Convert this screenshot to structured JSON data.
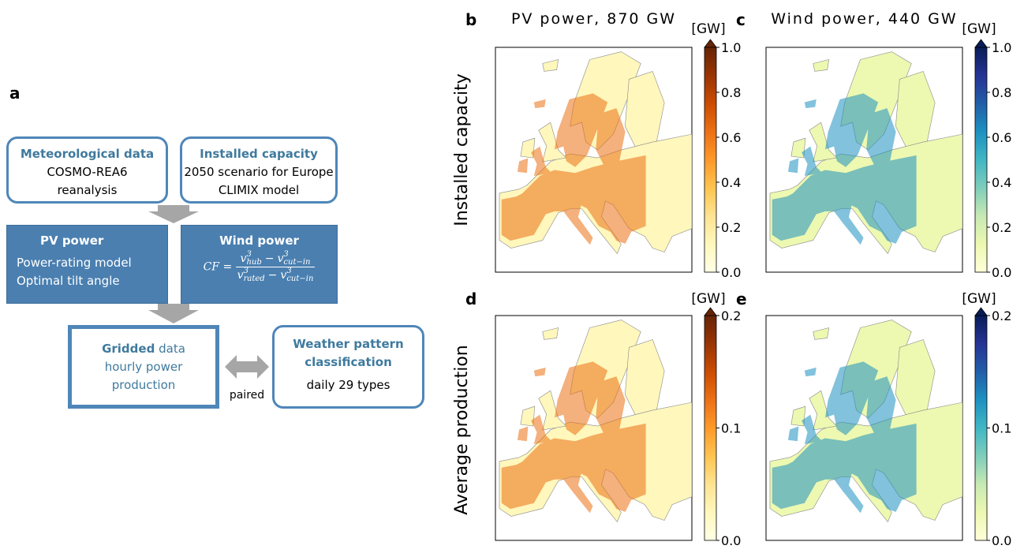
{
  "panel_a": {
    "label": "a",
    "meteo": {
      "title": "Meteorological data",
      "lines": [
        "COSMO-REA6",
        "reanalysis"
      ]
    },
    "capacity": {
      "title": "Installed capacity",
      "lines": [
        "2050 scenario for Europe",
        "CLIMIX model"
      ]
    },
    "pv": {
      "title": "PV power",
      "lines": [
        "Power-rating model",
        "Optimal tilt angle"
      ]
    },
    "wind": {
      "title": "Wind power",
      "formula": {
        "lhs": "CF",
        "eq": "=",
        "numerator": [
          {
            "base": "v",
            "sup": "3",
            "sub": "hub"
          },
          {
            "op": "−"
          },
          {
            "base": "v",
            "sup": "3",
            "sub": "cut−in"
          }
        ],
        "denominator": [
          {
            "base": "v",
            "sup": "3",
            "sub": "rated"
          },
          {
            "op": "−"
          },
          {
            "base": "v",
            "sup": "3",
            "sub": "cut−in"
          }
        ]
      }
    },
    "gridded": {
      "title": "Gridded",
      "title_rest": "data",
      "lines": [
        "hourly power",
        "production"
      ]
    },
    "link": "paired",
    "weather": {
      "title_lines": [
        "Weather pattern",
        "classification"
      ],
      "lines": [
        "daily 29 types"
      ]
    }
  },
  "row_labels": [
    "Installed capacity",
    "Average production"
  ],
  "maps": [
    {
      "label": "b",
      "title": "PV power, 870 GW",
      "unit": "[GW]",
      "lim": [
        0,
        1
      ],
      "ticks": [
        {
          "value": 0,
          "label": "0.0"
        },
        0.2,
        0.4,
        0.6,
        0.8,
        {
          "value": 1,
          "label": "1.0"
        }
      ],
      "colormap": [
        "#ffffe5",
        "#fff7bc",
        "#fee391",
        "#fec44f",
        "#fe9929",
        "#ec7014",
        "#cc4c02",
        "#993404",
        "#662506"
      ]
    },
    {
      "label": "c",
      "title": "Wind power, 440 GW",
      "unit": "[GW]",
      "lim": [
        0,
        1
      ],
      "ticks": [
        {
          "value": 0,
          "label": "0.0"
        },
        0.2,
        0.4,
        0.6,
        0.8,
        {
          "value": 1,
          "label": "1.0"
        }
      ],
      "colormap": [
        "#ffffd9",
        "#edf8b1",
        "#c7e9b4",
        "#7fcdbb",
        "#41b6c4",
        "#1d91c0",
        "#225ea8",
        "#253494",
        "#081d58"
      ]
    },
    {
      "label": "d",
      "unit": "[GW]",
      "lim": [
        0,
        0.2
      ],
      "ticks": [
        {
          "value": 0,
          "label": "0.0"
        },
        0.1,
        0.2
      ],
      "colormap": [
        "#ffffe5",
        "#fff7bc",
        "#fee391",
        "#fec44f",
        "#fe9929",
        "#ec7014",
        "#cc4c02",
        "#993404",
        "#662506"
      ]
    },
    {
      "label": "e",
      "unit": "[GW]",
      "lim": [
        0,
        0.2
      ],
      "ticks": [
        {
          "value": 0,
          "label": "0.0"
        },
        0.1,
        0.2
      ],
      "colormap": [
        "#ffffd9",
        "#edf8b1",
        "#c7e9b4",
        "#7fcdbb",
        "#41b6c4",
        "#1d91c0",
        "#225ea8",
        "#253494",
        "#081d58"
      ]
    }
  ]
}
